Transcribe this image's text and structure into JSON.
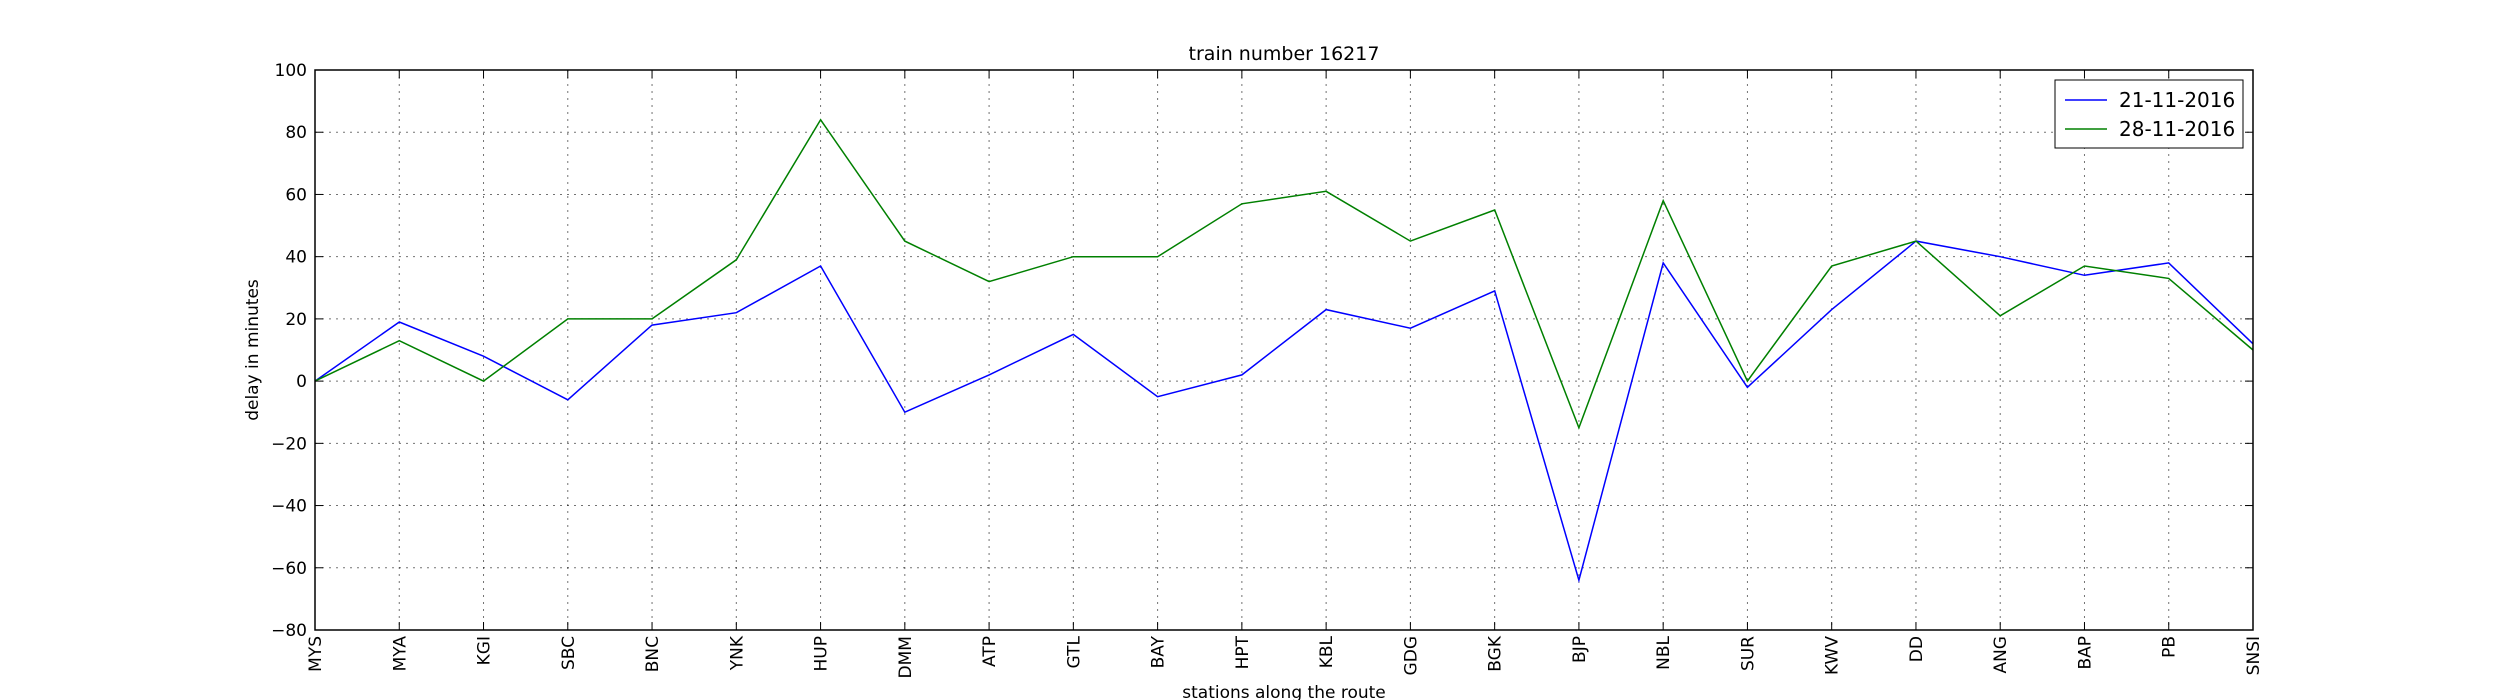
{
  "chart_data": {
    "type": "line",
    "title": "train number 16217",
    "xlabel": "stations along the route",
    "ylabel": "delay in minutes",
    "ylim": [
      -80,
      100
    ],
    "yticks": [
      -80,
      -60,
      -40,
      -20,
      0,
      20,
      40,
      60,
      80,
      100
    ],
    "grid": true,
    "legend_position": "top-right",
    "categories": [
      "MYS",
      "MYA",
      "KGI",
      "SBC",
      "BNC",
      "YNK",
      "HUP",
      "DMM",
      "ATP",
      "GTL",
      "BAY",
      "HPT",
      "KBL",
      "GDG",
      "BGK",
      "BJP",
      "NBL",
      "SUR",
      "KWV",
      "DD",
      "ANG",
      "BAP",
      "PB",
      "SNSI"
    ],
    "series": [
      {
        "name": "21-11-2016",
        "color": "#0000ff",
        "values": [
          0,
          19,
          8,
          -6,
          18,
          22,
          37,
          -10,
          2,
          15,
          -5,
          2,
          23,
          17,
          29,
          -64,
          38,
          -2,
          23,
          45,
          40,
          34,
          38,
          12
        ]
      },
      {
        "name": "28-11-2016",
        "color": "#008000",
        "values": [
          0,
          13,
          0,
          20,
          20,
          39,
          84,
          45,
          32,
          40,
          40,
          57,
          61,
          45,
          55,
          -15,
          58,
          0,
          37,
          45,
          21,
          37,
          33,
          10
        ]
      }
    ]
  }
}
